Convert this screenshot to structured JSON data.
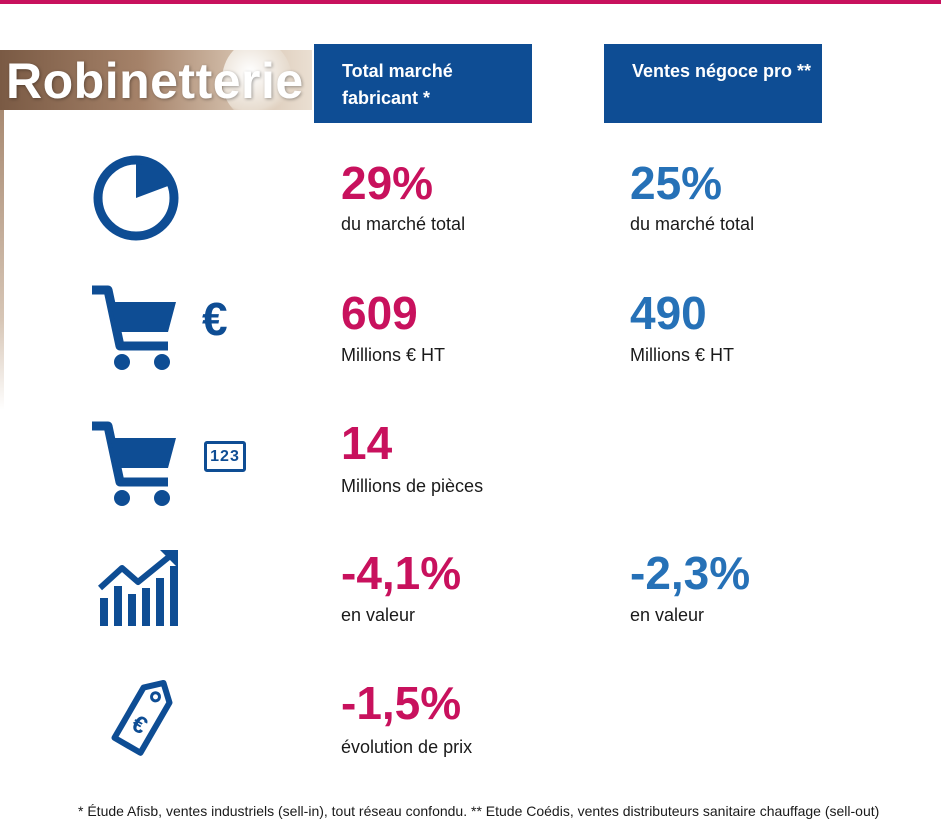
{
  "title": "Robinetterie",
  "columns": [
    {
      "header": "Total marché fabricant *"
    },
    {
      "header": "Ventes négoce pro **"
    }
  ],
  "rows": [
    {
      "icon": "pie-chart-icon",
      "fabricant": {
        "value": "29%",
        "label": "du marché total"
      },
      "negoce": {
        "value": "25%",
        "label": "du marché total"
      }
    },
    {
      "icon": "cart-euro-icon",
      "fabricant": {
        "value": "609",
        "label": "Millions € HT"
      },
      "negoce": {
        "value": "490",
        "label": "Millions € HT"
      }
    },
    {
      "icon": "cart-count-icon",
      "fabricant": {
        "value": "14",
        "label": "Millions de pièces"
      }
    },
    {
      "icon": "growth-chart-icon",
      "fabricant": {
        "value": "-4,1%",
        "label": "en valeur"
      },
      "negoce": {
        "value": "-2,3%",
        "label": "en valeur"
      }
    },
    {
      "icon": "euro-price-tag-icon",
      "fabricant": {
        "value": "-1,5%",
        "label": "évolution de prix"
      }
    }
  ],
  "icon_glyphs": {
    "euro": "€",
    "count": "123"
  },
  "colors": {
    "accent_magenta": "#c8115d",
    "accent_blue": "#2671b7",
    "header_navy": "#0e4d94"
  },
  "footnote": "* Étude Afisb, ventes industriels (sell-in), tout réseau confondu. ** Etude Coédis, ventes distributeurs sanitaire chauffage (sell-out)"
}
